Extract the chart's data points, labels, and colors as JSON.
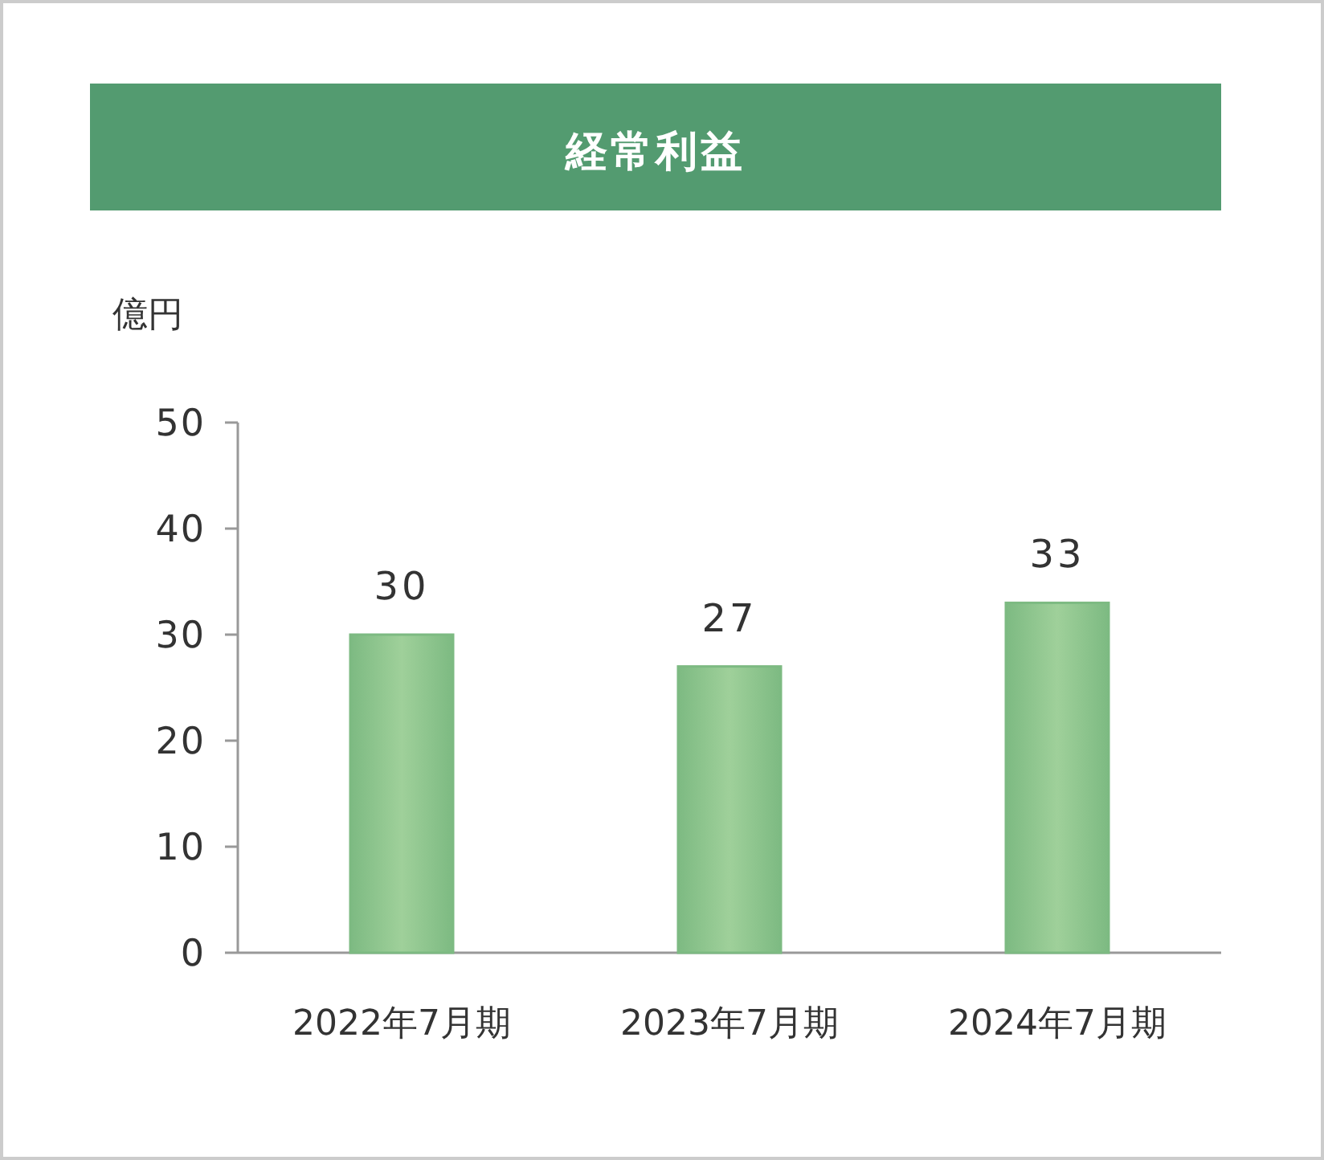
{
  "chart_data": {
    "type": "bar",
    "title": "経常利益",
    "ylabel": "億円",
    "categories": [
      "2022年7月期",
      "2023年7月期",
      "2024年7月期"
    ],
    "values": [
      30,
      27,
      33
    ],
    "color": "#7dba82",
    "ylim": [
      0,
      50
    ],
    "yticks": [
      0,
      10,
      20,
      30,
      40,
      50
    ],
    "data_labels": true
  }
}
